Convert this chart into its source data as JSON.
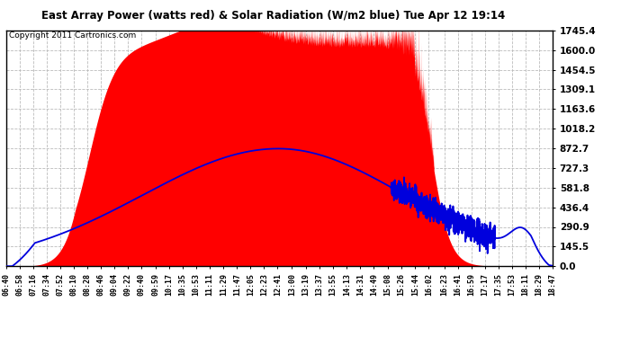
{
  "title": "East Array Power (watts red) & Solar Radiation (W/m2 blue) Tue Apr 12 19:14",
  "copyright": "Copyright 2011 Cartronics.com",
  "ymax": 1745.4,
  "ymin": 0.0,
  "yticks": [
    0.0,
    145.5,
    290.9,
    436.4,
    581.8,
    727.3,
    872.7,
    1018.2,
    1163.6,
    1309.1,
    1454.5,
    1600.0,
    1745.4
  ],
  "xtick_labels": [
    "06:40",
    "06:58",
    "07:16",
    "07:34",
    "07:52",
    "08:10",
    "08:28",
    "08:46",
    "09:04",
    "09:22",
    "09:40",
    "09:59",
    "10:17",
    "10:35",
    "10:53",
    "11:11",
    "11:29",
    "11:47",
    "12:05",
    "12:23",
    "12:41",
    "13:00",
    "13:19",
    "13:37",
    "13:55",
    "14:13",
    "14:31",
    "14:49",
    "15:08",
    "15:26",
    "15:44",
    "16:02",
    "16:23",
    "16:41",
    "16:59",
    "17:17",
    "17:35",
    "17:53",
    "18:11",
    "18:29",
    "18:47"
  ],
  "bg_color": "#ffffff",
  "red_color": "#ff0000",
  "blue_color": "#0000dd",
  "grid_color": "#bbbbbb"
}
